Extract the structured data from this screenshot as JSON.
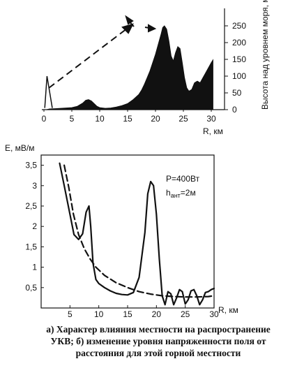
{
  "chart_data": [
    {
      "type": "area",
      "xlabel": "R, км",
      "ylabel": "Высота над уровнем моря, м",
      "xticks": [
        "0",
        "5",
        "10",
        "15",
        "20",
        "25",
        "30"
      ],
      "yticks": [
        "0",
        "50",
        "100",
        "150",
        "200",
        "250"
      ],
      "xlim": [
        0,
        30
      ],
      "ylim": [
        0,
        250
      ],
      "x": [
        0,
        0.5,
        1,
        2,
        3,
        4,
        5,
        6,
        7,
        7.5,
        8,
        8.5,
        9,
        9.5,
        10,
        11,
        12,
        13,
        14,
        15,
        16,
        17,
        17.5,
        18,
        18.5,
        19,
        19.5,
        20,
        20.5,
        21,
        21.3,
        21.6,
        22,
        22.4,
        22.8,
        23.2,
        23.6,
        24,
        24.4,
        24.8,
        25.2,
        25.6,
        26,
        26.5,
        27,
        27.5,
        28,
        28.5,
        29,
        29.5,
        30,
        30.3
      ],
      "values": [
        0,
        0,
        2,
        3,
        4,
        5,
        6,
        10,
        20,
        28,
        30,
        26,
        18,
        10,
        6,
        4,
        5,
        8,
        12,
        18,
        30,
        45,
        58,
        75,
        95,
        115,
        140,
        165,
        195,
        225,
        245,
        250,
        240,
        205,
        160,
        145,
        170,
        188,
        182,
        140,
        95,
        65,
        55,
        60,
        80,
        85,
        80,
        95,
        110,
        125,
        140,
        148
      ],
      "series": [
        {
          "name": "",
          "x": [
            0.15,
            0.55,
            1.5
          ],
          "y": [
            5,
            100,
            5
          ]
        }
      ]
    },
    {
      "type": "line",
      "xlabel": "R, км",
      "ylabel": "Е, мВ/м",
      "xticks": [
        "5",
        "10",
        "15",
        "20",
        "25",
        "30"
      ],
      "yticks": [
        "0,5",
        "1",
        "1,5",
        "2",
        "2,5",
        "3",
        "3,5"
      ],
      "xlim": [
        0,
        30
      ],
      "ylim": [
        0,
        3.75
      ],
      "annotations": [
        "P=400Вт",
        "h",
        "ант",
        "=2м"
      ],
      "series": [
        {
          "name": "",
          "style": "solid",
          "x": [
            3.2,
            4,
            5,
            5.7,
            6.5,
            7.2,
            7.8,
            8.3,
            8.6,
            9,
            9.5,
            10,
            11,
            12,
            13,
            14,
            15,
            16,
            17,
            18,
            18.5,
            19,
            19.5,
            20,
            20.5,
            21,
            21.5,
            22,
            22.5,
            23,
            23.5,
            24,
            24.5,
            25,
            25.5,
            26,
            26.5,
            27,
            27.5,
            28,
            28.5,
            29,
            29.5,
            30
          ],
          "y": [
            3.55,
            3.0,
            2.3,
            1.8,
            1.68,
            1.82,
            2.35,
            2.5,
            2.0,
            1.1,
            0.7,
            0.6,
            0.5,
            0.42,
            0.36,
            0.33,
            0.32,
            0.38,
            0.75,
            1.85,
            2.8,
            3.1,
            3.0,
            2.3,
            1.2,
            0.3,
            0.08,
            0.4,
            0.35,
            0.08,
            0.25,
            0.45,
            0.4,
            0.1,
            0.2,
            0.42,
            0.45,
            0.3,
            0.08,
            0.2,
            0.38,
            0.4,
            0.45,
            0.48
          ]
        },
        {
          "name": "",
          "style": "dashed",
          "x": [
            4,
            4.8,
            5.6,
            6.5,
            7.5,
            8.5,
            9.5,
            11,
            13,
            15,
            17,
            19,
            21,
            23,
            25,
            27,
            29,
            30
          ],
          "y": [
            3.5,
            2.95,
            2.3,
            1.8,
            1.45,
            1.2,
            1.0,
            0.8,
            0.62,
            0.5,
            0.4,
            0.34,
            0.3,
            0.28,
            0.27,
            0.27,
            0.28,
            0.3
          ]
        }
      ]
    }
  ],
  "caption": "а) Характер влияния местности на распространение УКВ; б) изменение уровня напряженности поля от расстояния для этой горной местности"
}
